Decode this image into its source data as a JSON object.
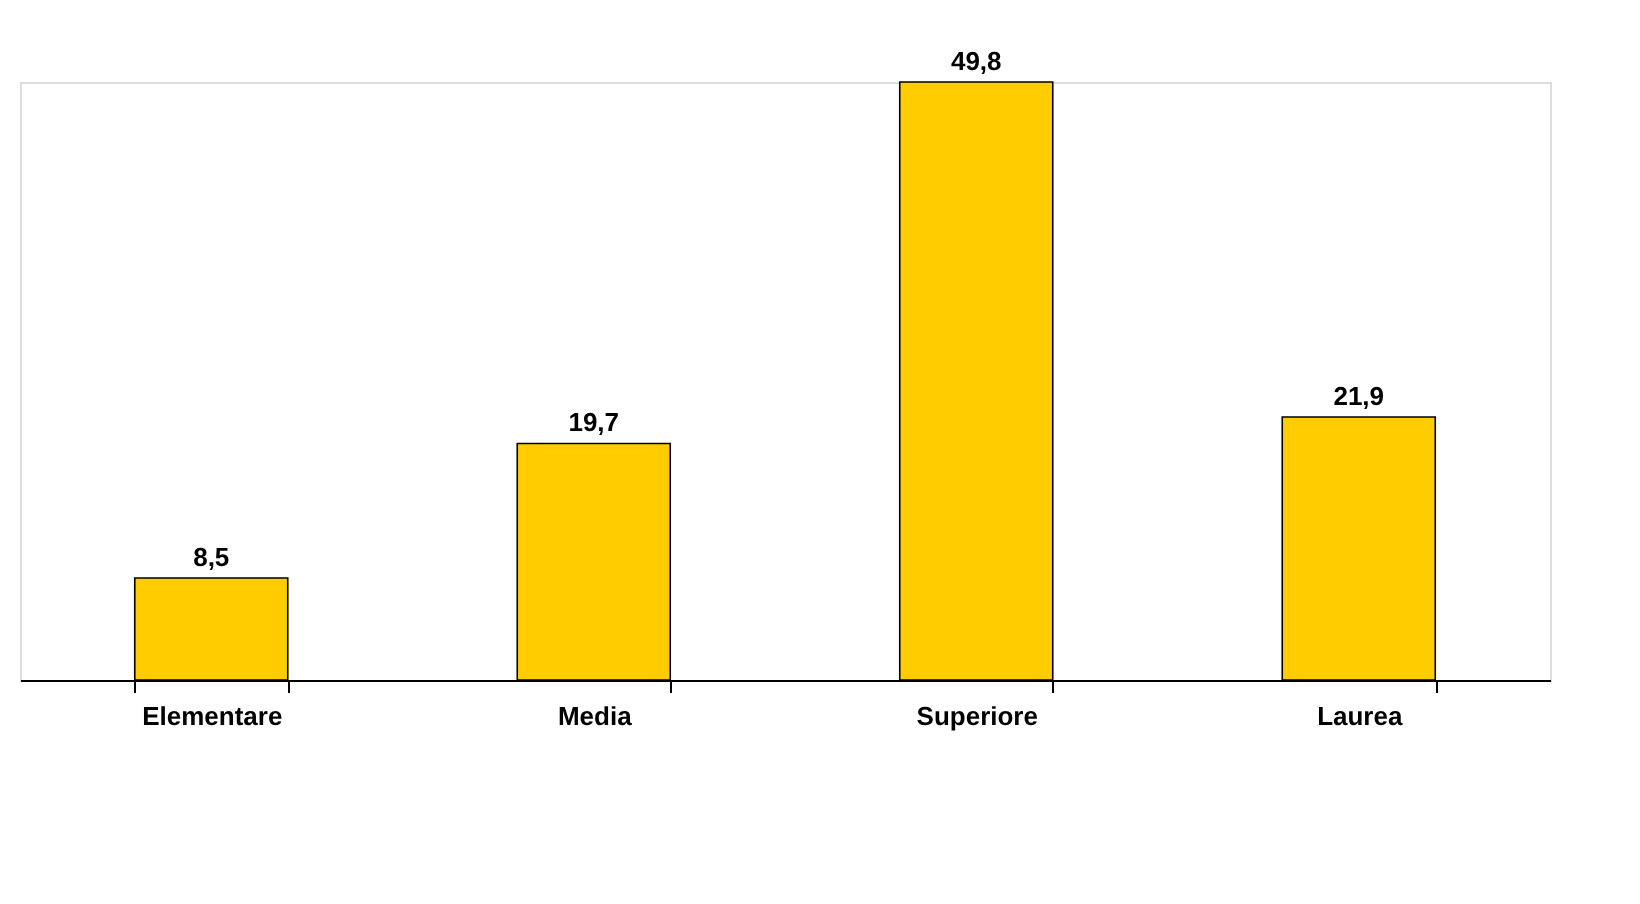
{
  "chart_data": {
    "type": "bar",
    "categories": [
      "Elementare",
      "Media",
      "Superiore",
      "Laurea"
    ],
    "values": [
      8.5,
      19.7,
      49.8,
      21.9
    ],
    "color": "#ffcc00",
    "data_labels": true,
    "value_labels": [
      "8,5",
      "19,7",
      "49,8",
      "21,9"
    ],
    "grid": false
  }
}
